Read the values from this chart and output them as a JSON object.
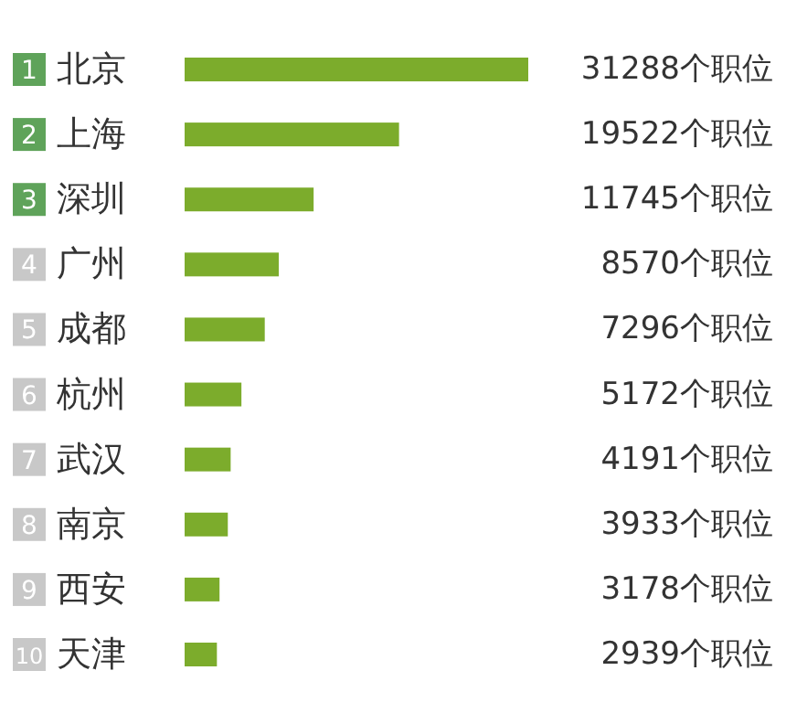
{
  "chart_data": {
    "type": "bar",
    "orientation": "horizontal",
    "categories": [
      "北京",
      "上海",
      "深圳",
      "广州",
      "成都",
      "杭州",
      "武汉",
      "南京",
      "西安",
      "天津"
    ],
    "values": [
      31288,
      19522,
      11745,
      8570,
      7296,
      5172,
      4191,
      3933,
      3178,
      2939
    ],
    "value_labels": [
      "31288个职位",
      "19522个职位",
      "11745个职位",
      "8570个职位",
      "7296个职位",
      "5172个职位",
      "4191个职位",
      "3933个职位",
      "3178个职位",
      "2939个职位"
    ],
    "color": "#7cac2c",
    "annotations": [
      "1",
      "2",
      "3",
      "4",
      "5",
      "6",
      "7",
      "8",
      "9",
      "10"
    ]
  }
}
